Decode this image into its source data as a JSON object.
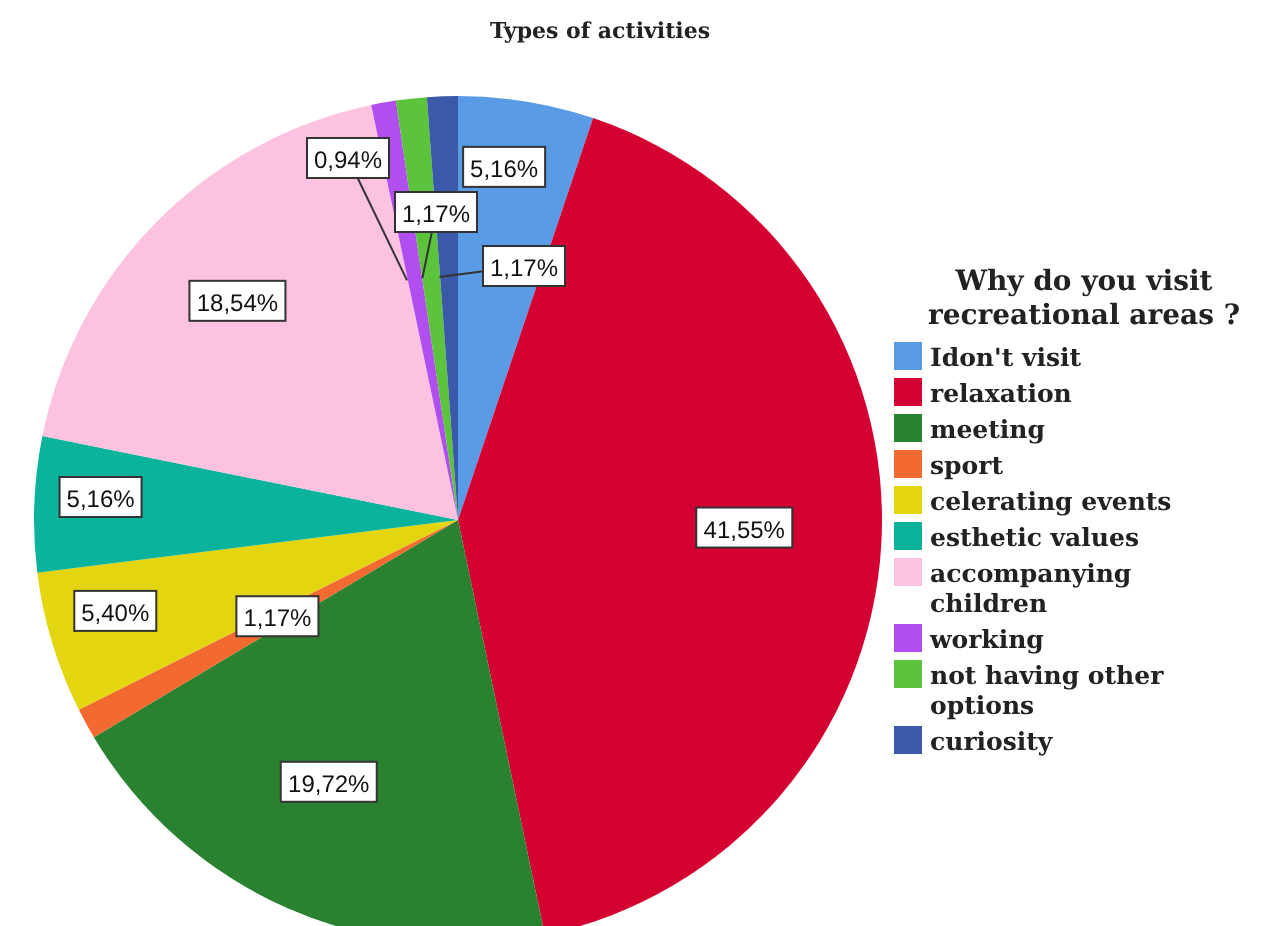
{
  "chart_data": {
    "type": "pie",
    "title": "Types of activities",
    "legend_title": "Why do you visit recreational areas ?",
    "legend": "right",
    "categories": [
      "Idon't visit",
      "relaxation",
      "meeting",
      "sport",
      "celerating events",
      "esthetic values",
      "accompanying children",
      "working",
      "not having other options",
      "curiosity"
    ],
    "values": [
      5.16,
      41.55,
      19.72,
      1.17,
      5.4,
      5.16,
      18.54,
      0.94,
      1.17,
      1.17
    ],
    "value_labels": [
      "5,16%",
      "41,55%",
      "19,72%",
      "1,17%",
      "5,40%",
      "5,16%",
      "18,54%",
      "0,94%",
      "1,17%",
      "1,17%"
    ],
    "colors": [
      "#5a9be6",
      "#d50032",
      "#2a8230",
      "#f26a30",
      "#e3d510",
      "#0bb39c",
      "#fcc2e0",
      "#b04ef0",
      "#5cc43c",
      "#3c58a8"
    ]
  }
}
